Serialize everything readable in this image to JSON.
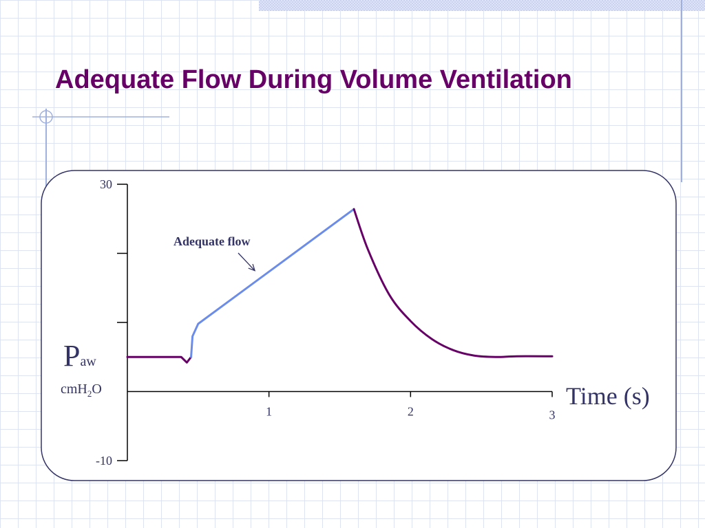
{
  "slide": {
    "title": "Adequate Flow During Volume Ventilation"
  },
  "colors": {
    "title": "#660066",
    "curve_primary": "#660066",
    "curve_highlight": "#6b8ce8",
    "axis": "#000000",
    "annotation": "#333366",
    "label": "#333366",
    "panel_border": "#333366"
  },
  "chart_data": {
    "type": "line",
    "ylabel_main": "P",
    "ylabel_sub": "aw",
    "yunit_prefix": "cmH",
    "yunit_sub": "2",
    "yunit_suffix": "O",
    "xlabel": "Time (s)",
    "ylim": [
      -10,
      30
    ],
    "xlim": [
      0,
      3
    ],
    "y_ticks": [
      -10,
      0,
      10,
      20,
      30
    ],
    "y_tick_labels": [
      "-10",
      "",
      "",
      "",
      "30"
    ],
    "x_ticks": [
      1,
      2,
      3
    ],
    "x_tick_labels": [
      "1",
      "2",
      "3"
    ],
    "grid": false,
    "legend": "none",
    "annotation": {
      "text": "Adequate flow",
      "arrow_to": [
        0.9,
        17.5
      ]
    },
    "series": [
      {
        "role": "baseline",
        "color": "#660066",
        "points": [
          [
            0.0,
            5.0
          ],
          [
            0.38,
            5.0
          ],
          [
            0.42,
            4.2
          ],
          [
            0.45,
            5.0
          ]
        ]
      },
      {
        "role": "inspiration",
        "color": "#6b8ce8",
        "points": [
          [
            0.45,
            5.0
          ],
          [
            0.46,
            8.0
          ],
          [
            0.5,
            9.8
          ],
          [
            1.6,
            26.4
          ]
        ]
      },
      {
        "role": "expiration",
        "color": "#660066",
        "points": [
          [
            1.6,
            26.4
          ],
          [
            1.7,
            20.5
          ],
          [
            1.85,
            14.0
          ],
          [
            2.0,
            10.2
          ],
          [
            2.15,
            7.6
          ],
          [
            2.3,
            6.0
          ],
          [
            2.45,
            5.2
          ],
          [
            2.6,
            5.0
          ],
          [
            2.75,
            5.1
          ],
          [
            3.0,
            5.1
          ]
        ]
      }
    ]
  }
}
